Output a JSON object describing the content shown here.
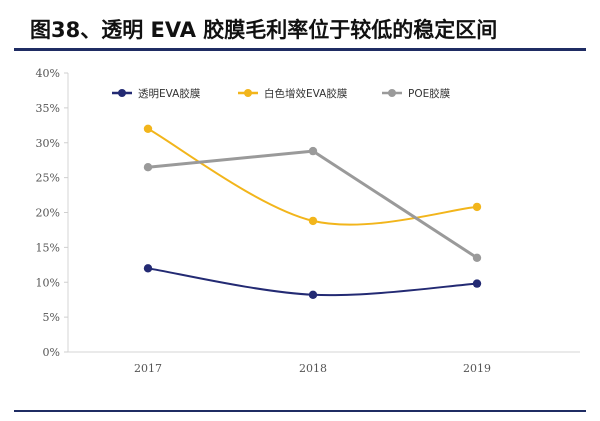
{
  "figure": {
    "title": "图38、透明 EVA 胶膜毛利率位于较低的稳定区间"
  },
  "chart_data": {
    "type": "line",
    "title": "",
    "xlabel": "",
    "ylabel": "",
    "categories": [
      "2017",
      "2018",
      "2019"
    ],
    "ylim": [
      0,
      40
    ],
    "y_ticks": [
      "0%",
      "5%",
      "10%",
      "15%",
      "20%",
      "25%",
      "30%",
      "35%",
      "40%"
    ],
    "grid": false,
    "legend_position": "top",
    "smooth": true,
    "series": [
      {
        "name": "透明EVA胶膜",
        "values": [
          12.0,
          8.2,
          9.8
        ],
        "color": "#232a73"
      },
      {
        "name": "白色增效EVA胶膜",
        "values": [
          32.0,
          18.8,
          20.8
        ],
        "color": "#f2b51b"
      },
      {
        "name": "POE胶膜",
        "values": [
          26.5,
          28.8,
          13.5
        ],
        "color": "#9a9a9a"
      }
    ]
  }
}
